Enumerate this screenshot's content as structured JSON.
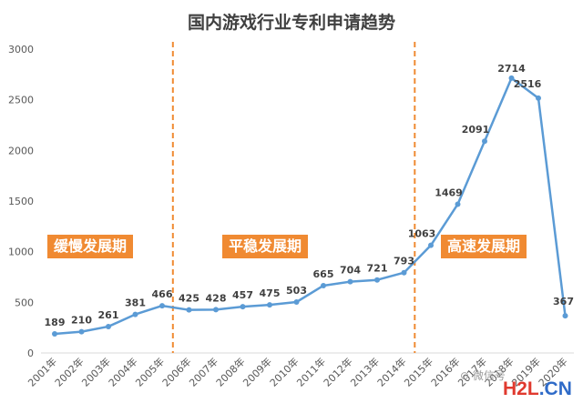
{
  "chart_data": {
    "type": "line",
    "title": "国内游戏行业专利申请趋势",
    "categories": [
      "2001年",
      "2002年",
      "2003年",
      "2004年",
      "2005年",
      "2006年",
      "2007年",
      "2008年",
      "2009年",
      "2010年",
      "2011年",
      "2012年",
      "2013年",
      "2014年",
      "2015年",
      "2016年",
      "2017年",
      "2018年",
      "2019年",
      "2020年"
    ],
    "series": [
      {
        "values": [
          189,
          210,
          261,
          381,
          466,
          425,
          428,
          457,
          475,
          503,
          665,
          704,
          721,
          793,
          1063,
          1469,
          2091,
          2714,
          2516,
          367
        ]
      }
    ],
    "ylim": [
      0,
      3000
    ],
    "yticks": [
      0,
      500,
      1000,
      1500,
      2000,
      2500,
      3000
    ],
    "grid": false,
    "line_color": "#5b9bd5",
    "phases": [
      {
        "label": "缓慢发展期"
      },
      {
        "label": "平稳发展期"
      },
      {
        "label": "高速发展期"
      }
    ],
    "divider_after": [
      "2005年",
      "2014年"
    ],
    "divider_color": "#f08a32"
  },
  "watermark": {
    "brand_a": "H2L",
    "brand_b": ".CN",
    "wechat_text": "微信号"
  }
}
